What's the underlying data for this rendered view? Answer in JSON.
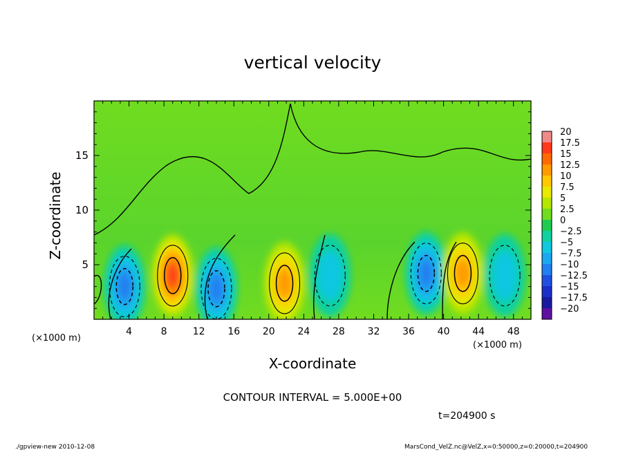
{
  "chart_data": {
    "type": "heatmap",
    "title": "vertical velocity",
    "xlabel": "X-coordinate",
    "ylabel": "Z-coordinate",
    "x_unit_left": "(×1000 m)",
    "x_unit_right": "(×1000 m)",
    "xlim": [
      0,
      50
    ],
    "ylim": [
      0,
      20
    ],
    "xticks": [
      4,
      8,
      12,
      16,
      20,
      24,
      28,
      32,
      36,
      40,
      44,
      48
    ],
    "yticks": [
      5,
      10,
      15
    ],
    "colorbar": {
      "levels": [
        20,
        17.5,
        15,
        12.5,
        10,
        7.5,
        5,
        2.5,
        0,
        -2.5,
        -5,
        -7.5,
        -10,
        -12.5,
        -15,
        -17.5,
        -20
      ],
      "labels": [
        "20",
        "17.5",
        "15",
        "12.5",
        "10",
        "7.5",
        "5",
        "2.5",
        "0",
        "−2.5",
        "−5",
        "−7.5",
        "−10",
        "−12.5",
        "−15",
        "−17.5",
        "−20"
      ],
      "colors": [
        "#f08a8a",
        "#ff3a1a",
        "#ff6a00",
        "#ff9a00",
        "#ffc800",
        "#e8e800",
        "#b4e600",
        "#70dc20",
        "#20cc50",
        "#10d0a0",
        "#10c8e0",
        "#1aa8f0",
        "#2080f0",
        "#2050e0",
        "#1a30c8",
        "#1a1aa0",
        "#6010a0"
      ]
    },
    "cells": [
      {
        "x": 3.5,
        "z": 3.0,
        "w": -10
      },
      {
        "x": 9.0,
        "z": 4.0,
        "w": 15
      },
      {
        "x": 14.0,
        "z": 2.8,
        "w": -10
      },
      {
        "x": 21.8,
        "z": 3.3,
        "w": 10
      },
      {
        "x": 27.0,
        "z": 4.0,
        "w": -5
      },
      {
        "x": 38.0,
        "z": 4.2,
        "w": -10
      },
      {
        "x": 42.2,
        "z": 4.2,
        "w": 12
      },
      {
        "x": 47.0,
        "z": 4.0,
        "w": -5
      }
    ],
    "contour_interval": "CONTOUR INTERVAL = 5.000E+00",
    "time": "t=204900 s"
  },
  "footer": {
    "left": "./gpview-new  2010-12-08",
    "right": "MarsCond_VelZ.nc@VelZ,x=0:50000,z=0:20000,t=204900"
  }
}
